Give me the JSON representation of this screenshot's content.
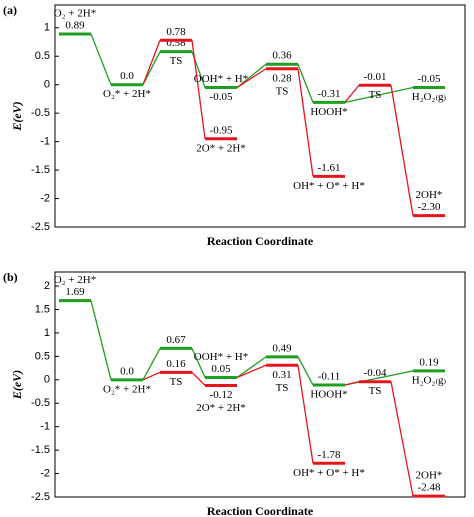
{
  "chart_data": [
    {
      "type": "energy",
      "title": "(a)",
      "xlabel": "Reaction Coordinate",
      "ylabel": "E(eV)",
      "ylim": [
        -2.5,
        1.4
      ],
      "yticks": [
        1,
        0.5,
        0,
        -0.5,
        -1,
        -1.5,
        -2,
        -2.5
      ],
      "series": [
        {
          "color": "#1f9e1f",
          "values": [
            0.89,
            0,
            0.58,
            -0.05,
            0.36,
            -0.31,
            null,
            -0.05
          ],
          "value_labels": [
            "0.89",
            "0.0",
            "0.58",
            "-0.05",
            "0.36",
            "-0.31",
            null,
            "-0.05"
          ],
          "labels": [
            "O₂ + 2H*",
            "O₂* + 2H*",
            "TS",
            "OOH* + H*",
            null,
            "HOOH*",
            null,
            "H₂O₂₍g₎"
          ]
        },
        {
          "color": "#e8141c",
          "values": [
            null,
            null,
            0.78,
            -0.95,
            0.28,
            -1.61,
            -0.01,
            -2.3
          ],
          "value_labels": [
            null,
            null,
            "0.78",
            "-0.95",
            "0.28",
            "-1.61",
            "-0.01",
            "-2.30"
          ],
          "labels": [
            null,
            null,
            null,
            "2O* + 2H*",
            "TS",
            "OH* + O* + H*",
            "TS",
            "2OH*"
          ]
        }
      ],
      "links": [
        [
          [
            0,
            0
          ],
          [
            0,
            1
          ]
        ],
        [
          [
            0,
            1
          ],
          [
            0,
            2
          ]
        ],
        [
          [
            0,
            2
          ],
          [
            0,
            3
          ]
        ],
        [
          [
            0,
            3
          ],
          [
            0,
            4
          ]
        ],
        [
          [
            0,
            4
          ],
          [
            0,
            5
          ]
        ],
        [
          [
            0,
            5
          ],
          [
            0,
            7
          ]
        ],
        [
          [
            0,
            1
          ],
          [
            1,
            2
          ]
        ],
        [
          [
            1,
            2
          ],
          [
            1,
            3
          ]
        ],
        [
          [
            0,
            3
          ],
          [
            1,
            4
          ]
        ],
        [
          [
            1,
            4
          ],
          [
            1,
            5
          ]
        ],
        [
          [
            0,
            5
          ],
          [
            1,
            6
          ]
        ],
        [
          [
            1,
            6
          ],
          [
            1,
            7
          ]
        ]
      ]
    },
    {
      "type": "energy",
      "title": "(b)",
      "xlabel": "Reaction Coordinate",
      "ylabel": "E(eV)",
      "ylim": [
        -2.5,
        2.3
      ],
      "yticks": [
        2,
        1.5,
        1,
        0.5,
        0,
        -0.5,
        -1,
        -1.5,
        -2,
        -2.5
      ],
      "series": [
        {
          "color": "#1f9e1f",
          "values": [
            1.69,
            0,
            0.67,
            0.05,
            0.49,
            -0.11,
            null,
            0.19
          ],
          "value_labels": [
            "1.69",
            "0.0",
            "0.67",
            "0.05",
            "0.49",
            "-0.11",
            null,
            "0.19"
          ],
          "labels": [
            "O₂ + 2H*",
            "O₂* + 2H*",
            null,
            "OOH* + H*",
            null,
            "HOOH*",
            null,
            "H₂O₂₍g₎"
          ]
        },
        {
          "color": "#e8141c",
          "values": [
            null,
            null,
            0.16,
            -0.12,
            0.31,
            -1.78,
            -0.04,
            -2.48
          ],
          "value_labels": [
            null,
            null,
            "0.16",
            "-0.12",
            "0.31",
            "-1.78",
            "-0.04",
            "-2.48"
          ],
          "labels": [
            null,
            null,
            "TS",
            "2O* + 2H*",
            "TS",
            "OH* + O* + H*",
            "TS",
            "2OH*"
          ]
        }
      ],
      "links": [
        [
          [
            0,
            0
          ],
          [
            0,
            1
          ]
        ],
        [
          [
            0,
            1
          ],
          [
            0,
            2
          ]
        ],
        [
          [
            0,
            2
          ],
          [
            0,
            3
          ]
        ],
        [
          [
            0,
            3
          ],
          [
            0,
            4
          ]
        ],
        [
          [
            0,
            4
          ],
          [
            0,
            5
          ]
        ],
        [
          [
            0,
            5
          ],
          [
            0,
            7
          ]
        ],
        [
          [
            0,
            1
          ],
          [
            1,
            2
          ]
        ],
        [
          [
            1,
            2
          ],
          [
            1,
            3
          ]
        ],
        [
          [
            0,
            3
          ],
          [
            1,
            4
          ]
        ],
        [
          [
            1,
            4
          ],
          [
            1,
            5
          ]
        ],
        [
          [
            0,
            5
          ],
          [
            1,
            6
          ]
        ],
        [
          [
            1,
            6
          ],
          [
            1,
            7
          ]
        ]
      ]
    }
  ]
}
